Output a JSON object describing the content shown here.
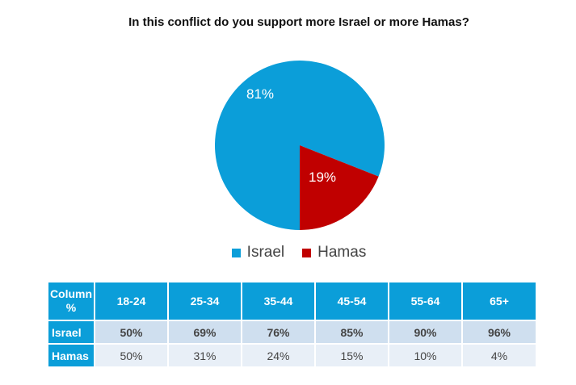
{
  "chart_data": {
    "type": "pie",
    "title": "In this conflict do you support more Israel or more Hamas?",
    "categories": [
      "Israel",
      "Hamas"
    ],
    "values": [
      81,
      19
    ],
    "labels": [
      "81%",
      "19%"
    ],
    "colors": [
      "#0b9ed9",
      "#c00000"
    ],
    "legend": "bottom"
  },
  "table": {
    "corner_label": "Column %",
    "columns": [
      "18-24",
      "25-34",
      "35-44",
      "45-54",
      "55-64",
      "65+"
    ],
    "rows": [
      {
        "label": "Israel",
        "values": [
          "50%",
          "69%",
          "76%",
          "85%",
          "90%",
          "96%"
        ]
      },
      {
        "label": "Hamas",
        "values": [
          "50%",
          "31%",
          "24%",
          "15%",
          "10%",
          "4%"
        ]
      }
    ]
  }
}
